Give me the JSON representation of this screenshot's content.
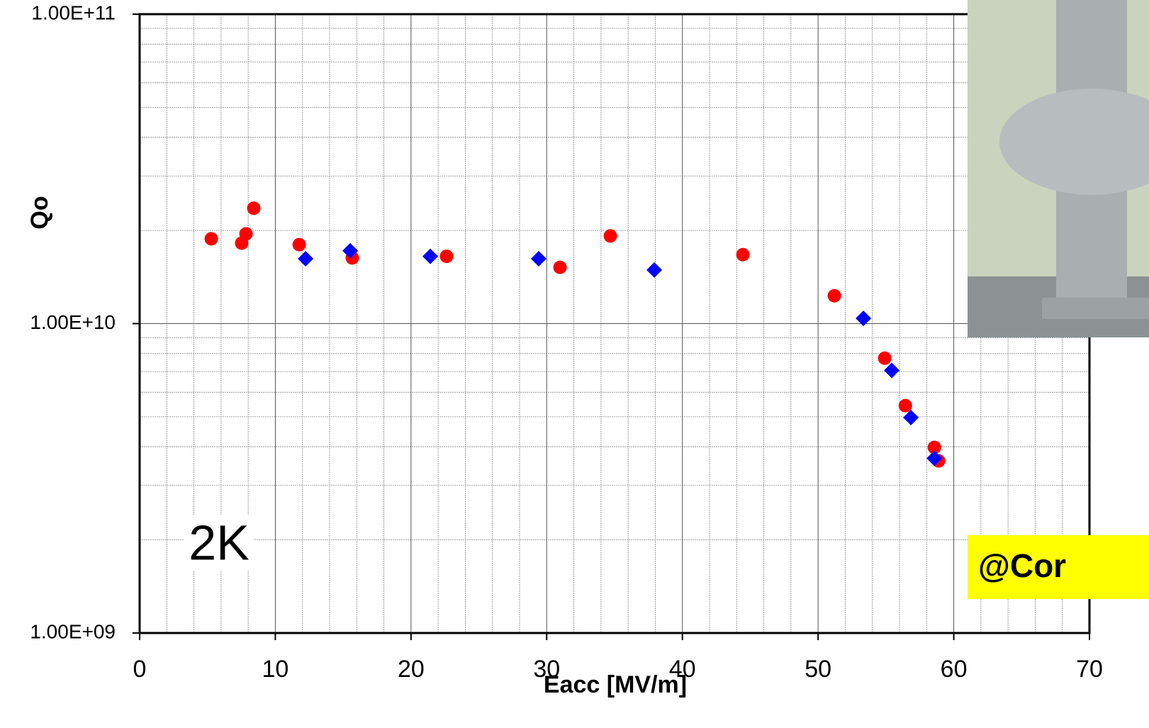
{
  "chart_data": {
    "type": "scatter",
    "x_label": "Eacc [MV/m]",
    "y_label": "Qo",
    "annotations": [
      "2K",
      "@Cor"
    ],
    "xlim": [
      0,
      70
    ],
    "xticks": [
      0,
      10,
      20,
      30,
      40,
      50,
      60,
      70
    ],
    "minor_xticks": [
      2,
      4,
      6,
      8,
      12,
      14,
      16,
      18,
      22,
      24,
      26,
      28,
      32,
      34,
      36,
      38,
      42,
      44,
      46,
      48,
      52,
      54,
      56,
      58,
      62,
      64,
      66,
      68
    ],
    "ylim": [
      1000000000,
      100000000000
    ],
    "yscale": "log",
    "yticks": [
      {
        "value": 1000000000,
        "label": "1.00E+09"
      },
      {
        "value": 10000000000,
        "label": "1.00E+10"
      },
      {
        "value": 100000000000,
        "label": "1.00E+11"
      }
    ],
    "minor_yticks": [
      2000000000,
      3000000000,
      4000000000,
      5000000000,
      6000000000,
      7000000000,
      8000000000,
      9000000000,
      20000000000,
      30000000000,
      40000000000,
      50000000000,
      60000000000,
      70000000000,
      80000000000,
      90000000000
    ],
    "grid": true,
    "series": [
      {
        "color": "#ff0000",
        "marker": "circle",
        "x": [
          5.28,
          7.52,
          7.84,
          8.41,
          11.76,
          15.67,
          22.62,
          30.98,
          34.69,
          44.46,
          51.2,
          54.91,
          56.43,
          58.57,
          58.88
        ],
        "values": [
          18800000000,
          18200000000,
          19500000000,
          23600000000,
          18000000000,
          16300000000,
          16500000000,
          15200000000,
          19200000000,
          16700000000,
          12300000000,
          7730000000,
          5430000000,
          3980000000,
          3600000000
        ]
      },
      {
        "color": "#0000ff",
        "marker": "diamond",
        "x": [
          12.23,
          15.52,
          21.42,
          29.41,
          37.93,
          53.34,
          55.43,
          56.84,
          58.57
        ],
        "values": [
          16200000000,
          17200000000,
          16500000000,
          16200000000,
          14900000000,
          10400000000,
          7060000000,
          4970000000,
          3670000000
        ]
      }
    ]
  }
}
